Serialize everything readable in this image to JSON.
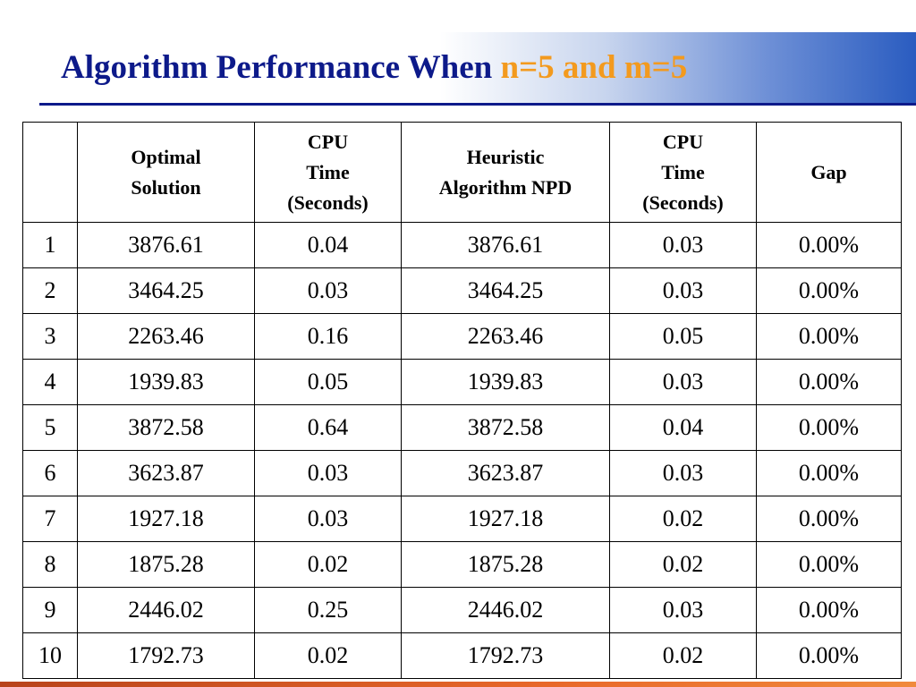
{
  "slide": {
    "title_main": "Algorithm Performance When ",
    "title_accent": "n=5 and m=5"
  },
  "table": {
    "headers": [
      "",
      "Optimal\nSolution",
      "CPU\nTime\n(Seconds)",
      "Heuristic\nAlgorithm NPD",
      "CPU\nTime\n(Seconds)",
      "Gap"
    ],
    "rows": [
      [
        "1",
        "3876.61",
        "0.04",
        "3876.61",
        "0.03",
        "0.00%"
      ],
      [
        "2",
        "3464.25",
        "0.03",
        "3464.25",
        "0.03",
        "0.00%"
      ],
      [
        "3",
        "2263.46",
        "0.16",
        "2263.46",
        "0.05",
        "0.00%"
      ],
      [
        "4",
        "1939.83",
        "0.05",
        "1939.83",
        "0.03",
        "0.00%"
      ],
      [
        "5",
        "3872.58",
        "0.64",
        "3872.58",
        "0.04",
        "0.00%"
      ],
      [
        "6",
        "3623.87",
        "0.03",
        "3623.87",
        "0.03",
        "0.00%"
      ],
      [
        "7",
        "1927.18",
        "0.03",
        "1927.18",
        "0.02",
        "0.00%"
      ],
      [
        "8",
        "1875.28",
        "0.02",
        "1875.28",
        "0.02",
        "0.00%"
      ],
      [
        "9",
        "2446.02",
        "0.25",
        "2446.02",
        "0.03",
        "0.00%"
      ],
      [
        "10",
        "1792.73",
        "0.02",
        "1792.73",
        "0.02",
        "0.00%"
      ]
    ]
  },
  "colors": {
    "title": "#0d1a8a",
    "title_accent": "#f39a1e",
    "band_end": "#2a5cc0",
    "bottom_bar": "#e8682a"
  }
}
